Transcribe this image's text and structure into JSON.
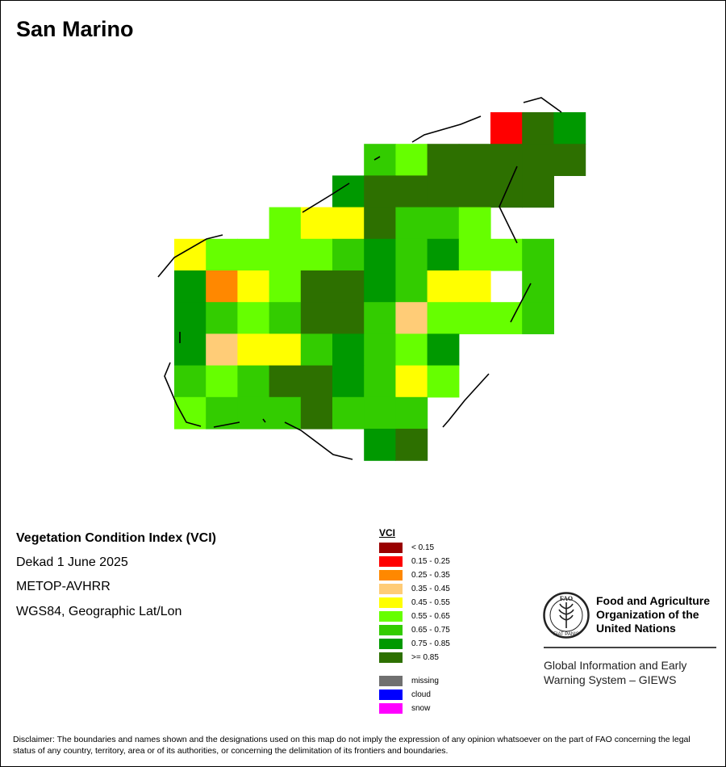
{
  "map": {
    "title": "San Marino",
    "colors": {
      "c2": "#ff0000",
      "c4": "#ffcc77",
      "c5": "#ffff00",
      "c6": "#66ff00",
      "c7": "#33cc00",
      "c8": "#009900",
      "c9": "#2d7000",
      "c3": "#ff8800"
    },
    "grid_rows": [
      "..........298",
      "......7699999",
      ".....8999999.",
      "...6559776...",
      "566667878667.",
      "8356998755.7.",
      "876799746667.",
      "845578768....",
      "767998756....",
      "67779777.....",
      "......89....."
    ]
  },
  "info": {
    "product": "Vegetation Condition Index (VCI)",
    "period": "Dekad 1 June 2025",
    "sensor": "METOP-AVHRR",
    "projection": "WGS84, Geographic Lat/Lon"
  },
  "legend": {
    "title": "VCI",
    "classes": [
      {
        "label": "< 0.15",
        "color": "#990000"
      },
      {
        "label": "0.15 - 0.25",
        "color": "#ff0000"
      },
      {
        "label": "0.25 - 0.35",
        "color": "#ff8800"
      },
      {
        "label": "0.35 - 0.45",
        "color": "#ffcc77"
      },
      {
        "label": "0.45 - 0.55",
        "color": "#ffff00"
      },
      {
        "label": "0.55 - 0.65",
        "color": "#66ff00"
      },
      {
        "label": "0.65 - 0.75",
        "color": "#33cc00"
      },
      {
        "label": "0.75 - 0.85",
        "color": "#009900"
      },
      {
        "label": ">= 0.85",
        "color": "#2d7000"
      }
    ],
    "special": [
      {
        "label": "missing",
        "color": "#707070"
      },
      {
        "label": "cloud",
        "color": "#0000ff"
      },
      {
        "label": "snow",
        "color": "#ff00ff"
      }
    ]
  },
  "organization": {
    "logo_letters": "FAO",
    "logo_motto": "FIAT PANIS",
    "name": "Food and Agriculture\nOrganization of the\nUnited Nations",
    "system": "Global Information and Early\nWarning System – GIEWS"
  },
  "disclaimer": "Disclaimer: The boundaries and names shown and the designations used on this map do not imply the expression of any opinion whatsoever on the part of FAO concerning the legal status of any country, territory, area or of its authorities, or concerning the delimitation of its frontiers and boundaries."
}
